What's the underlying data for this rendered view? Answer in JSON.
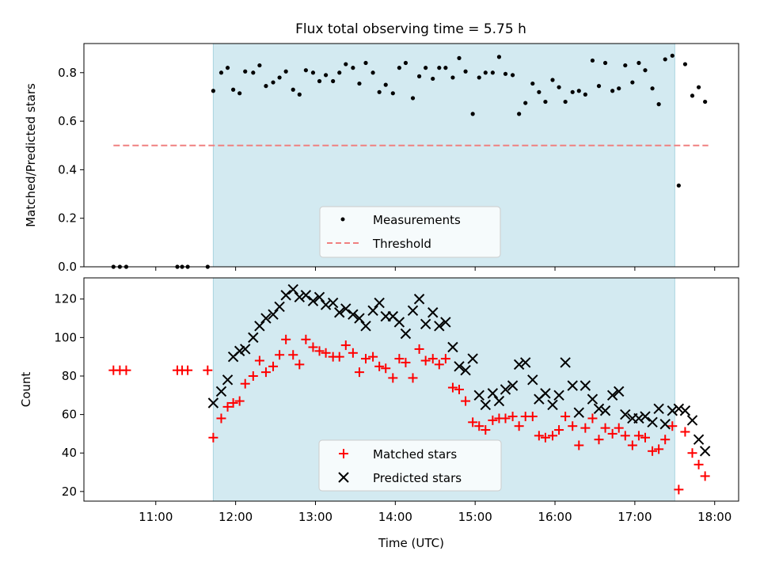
{
  "title": "Flux total observing time = 5.75 h",
  "colors": {
    "band": "#d3eaf1",
    "threshold": "#f08080",
    "matched": "#ff0000",
    "predicted": "#000000",
    "measurement": "#000000"
  },
  "chart_data": [
    {
      "type": "scatter",
      "ylabel": "Matched/Predicted stars",
      "xlabel": "",
      "ylim": [
        0,
        0.92
      ],
      "yticks": [
        "0.0",
        "0.2",
        "0.4",
        "0.6",
        "0.8"
      ],
      "xlim": [
        10.1,
        18.3
      ],
      "highlight_band": [
        11.72,
        17.5
      ],
      "legend": {
        "position": "lower-center",
        "entries": [
          "Measurements",
          "Threshold"
        ]
      },
      "threshold": {
        "name": "Threshold",
        "y": 0.5,
        "x": [
          10.47,
          17.92
        ]
      },
      "series": [
        {
          "name": "Measurements",
          "x": [
            10.47,
            10.55,
            10.63,
            11.27,
            11.33,
            11.4,
            11.65,
            11.72,
            11.82,
            11.9,
            11.97,
            12.05,
            12.12,
            12.22,
            12.3,
            12.38,
            12.47,
            12.55,
            12.63,
            12.72,
            12.8,
            12.88,
            12.97,
            13.05,
            13.13,
            13.22,
            13.3,
            13.38,
            13.47,
            13.55,
            13.63,
            13.72,
            13.8,
            13.88,
            13.97,
            14.05,
            14.13,
            14.22,
            14.3,
            14.38,
            14.47,
            14.55,
            14.63,
            14.72,
            14.8,
            14.88,
            14.97,
            15.05,
            15.13,
            15.22,
            15.3,
            15.38,
            15.47,
            15.55,
            15.63,
            15.72,
            15.8,
            15.88,
            15.97,
            16.05,
            16.13,
            16.22,
            16.3,
            16.38,
            16.47,
            16.55,
            16.63,
            16.72,
            16.8,
            16.88,
            16.97,
            17.05,
            17.13,
            17.22,
            17.3,
            17.38,
            17.47,
            17.55,
            17.63,
            17.72,
            17.8,
            17.88
          ],
          "y": [
            0.0,
            0.0,
            0.0,
            0.0,
            0.0,
            0.0,
            0.0,
            0.725,
            0.8,
            0.82,
            0.73,
            0.715,
            0.805,
            0.8,
            0.83,
            0.745,
            0.76,
            0.78,
            0.805,
            0.73,
            0.71,
            0.81,
            0.8,
            0.765,
            0.79,
            0.765,
            0.8,
            0.835,
            0.82,
            0.755,
            0.84,
            0.8,
            0.72,
            0.75,
            0.715,
            0.82,
            0.84,
            0.695,
            0.785,
            0.82,
            0.775,
            0.82,
            0.82,
            0.78,
            0.86,
            0.805,
            0.63,
            0.78,
            0.8,
            0.8,
            0.865,
            0.795,
            0.79,
            0.63,
            0.675,
            0.755,
            0.72,
            0.68,
            0.77,
            0.74,
            0.68,
            0.72,
            0.725,
            0.71,
            0.85,
            0.745,
            0.84,
            0.725,
            0.735,
            0.83,
            0.76,
            0.84,
            0.81,
            0.735,
            0.67,
            0.855,
            0.87,
            0.335,
            0.835,
            0.705,
            0.74,
            0.68
          ]
        }
      ]
    },
    {
      "type": "scatter",
      "ylabel": "Count",
      "xlabel": "Time (UTC)",
      "ylim": [
        15,
        131
      ],
      "yticks": [
        "20",
        "40",
        "60",
        "80",
        "100",
        "120"
      ],
      "xlim": [
        10.1,
        18.3
      ],
      "xticks": {
        "values": [
          11,
          12,
          13,
          14,
          15,
          16,
          17,
          18
        ],
        "labels": [
          "11:00",
          "12:00",
          "13:00",
          "14:00",
          "15:00",
          "16:00",
          "17:00",
          "18:00"
        ]
      },
      "highlight_band": [
        11.72,
        17.5
      ],
      "legend": {
        "position": "lower-center",
        "entries": [
          "Matched stars",
          "Predicted stars"
        ]
      },
      "series": [
        {
          "name": "Matched stars",
          "x": [
            10.47,
            10.55,
            10.63,
            11.27,
            11.33,
            11.4,
            11.65,
            11.72,
            11.82,
            11.9,
            11.97,
            12.05,
            12.12,
            12.22,
            12.3,
            12.38,
            12.47,
            12.55,
            12.63,
            12.72,
            12.8,
            12.88,
            12.97,
            13.05,
            13.13,
            13.22,
            13.3,
            13.38,
            13.47,
            13.55,
            13.63,
            13.72,
            13.8,
            13.88,
            13.97,
            14.05,
            14.13,
            14.22,
            14.3,
            14.38,
            14.47,
            14.55,
            14.63,
            14.72,
            14.8,
            14.88,
            14.97,
            15.05,
            15.13,
            15.22,
            15.3,
            15.38,
            15.47,
            15.55,
            15.63,
            15.72,
            15.8,
            15.88,
            15.97,
            16.05,
            16.13,
            16.22,
            16.3,
            16.38,
            16.47,
            16.55,
            16.63,
            16.72,
            16.8,
            16.88,
            16.97,
            17.05,
            17.13,
            17.22,
            17.3,
            17.38,
            17.47,
            17.55,
            17.63,
            17.72,
            17.8,
            17.88
          ],
          "y": [
            83,
            83,
            83,
            83,
            83,
            83,
            83,
            48,
            58,
            64,
            66,
            67,
            76,
            80,
            88,
            82,
            85,
            91,
            99,
            91,
            86,
            99,
            95,
            93,
            92,
            90,
            90,
            96,
            92,
            82,
            89,
            90,
            85,
            84,
            79,
            89,
            87,
            79,
            94,
            88,
            89,
            86,
            89,
            74,
            73,
            67,
            56,
            54,
            52,
            57,
            58,
            58,
            59,
            54,
            59,
            59,
            49,
            48,
            49,
            52,
            59,
            54,
            44,
            53,
            58,
            47,
            53,
            50,
            53,
            49,
            44,
            49,
            48,
            41,
            42,
            47,
            54,
            21,
            51,
            40,
            34,
            28
          ]
        },
        {
          "name": "Predicted stars",
          "x": [
            11.72,
            11.82,
            11.9,
            11.97,
            12.05,
            12.12,
            12.22,
            12.3,
            12.38,
            12.47,
            12.55,
            12.63,
            12.72,
            12.8,
            12.88,
            12.97,
            13.05,
            13.13,
            13.22,
            13.3,
            13.38,
            13.47,
            13.55,
            13.63,
            13.72,
            13.8,
            13.88,
            13.97,
            14.05,
            14.13,
            14.22,
            14.3,
            14.38,
            14.47,
            14.55,
            14.63,
            14.72,
            14.8,
            14.88,
            14.97,
            15.05,
            15.13,
            15.22,
            15.3,
            15.38,
            15.47,
            15.55,
            15.63,
            15.72,
            15.8,
            15.88,
            15.97,
            16.05,
            16.13,
            16.22,
            16.3,
            16.38,
            16.47,
            16.55,
            16.63,
            16.72,
            16.8,
            16.88,
            16.97,
            17.05,
            17.13,
            17.22,
            17.3,
            17.38,
            17.47,
            17.55,
            17.63,
            17.72,
            17.8,
            17.88
          ],
          "y": [
            66,
            72,
            78,
            90,
            93,
            94,
            100,
            106,
            110,
            112,
            116,
            122,
            125,
            121,
            122,
            119,
            121,
            117,
            118,
            113,
            115,
            112,
            110,
            106,
            114,
            118,
            111,
            111,
            108,
            102,
            114,
            120,
            107,
            113,
            106,
            108,
            95,
            85,
            83,
            89,
            70,
            65,
            71,
            67,
            73,
            75,
            86,
            87,
            78,
            68,
            71,
            65,
            70,
            87,
            75,
            61,
            75,
            68,
            63,
            62,
            70,
            72,
            60,
            58,
            58,
            59,
            56,
            63,
            55,
            62,
            63,
            62,
            57,
            47,
            41
          ]
        }
      ]
    }
  ]
}
